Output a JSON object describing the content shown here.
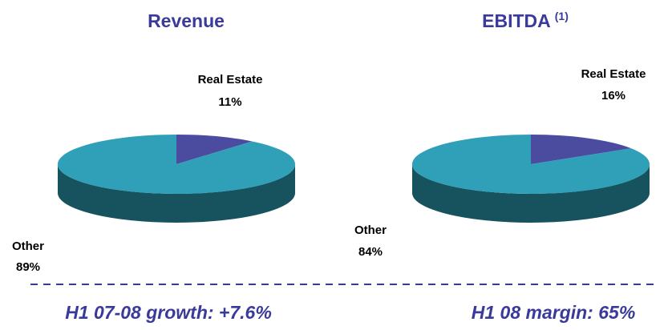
{
  "chart_data": [
    {
      "type": "pie3d",
      "title": "Revenue",
      "categories": [
        "Real Estate",
        "Other"
      ],
      "values": [
        11,
        89
      ],
      "value_labels": [
        "11%",
        "89%"
      ],
      "colors": [
        "#4b4ba0",
        "#2fa0b8"
      ],
      "side_color": "#17535e",
      "annotation": "H1 07-08 growth: +7.6%"
    },
    {
      "type": "pie3d",
      "title": "EBITDA",
      "title_note": "(1)",
      "categories": [
        "Real Estate",
        "Other"
      ],
      "values": [
        16,
        84
      ],
      "value_labels": [
        "16%",
        "84%"
      ],
      "colors": [
        "#4b4ba0",
        "#2fa0b8"
      ],
      "side_color": "#17535e",
      "annotation": "H1 08 margin: 65%"
    }
  ]
}
